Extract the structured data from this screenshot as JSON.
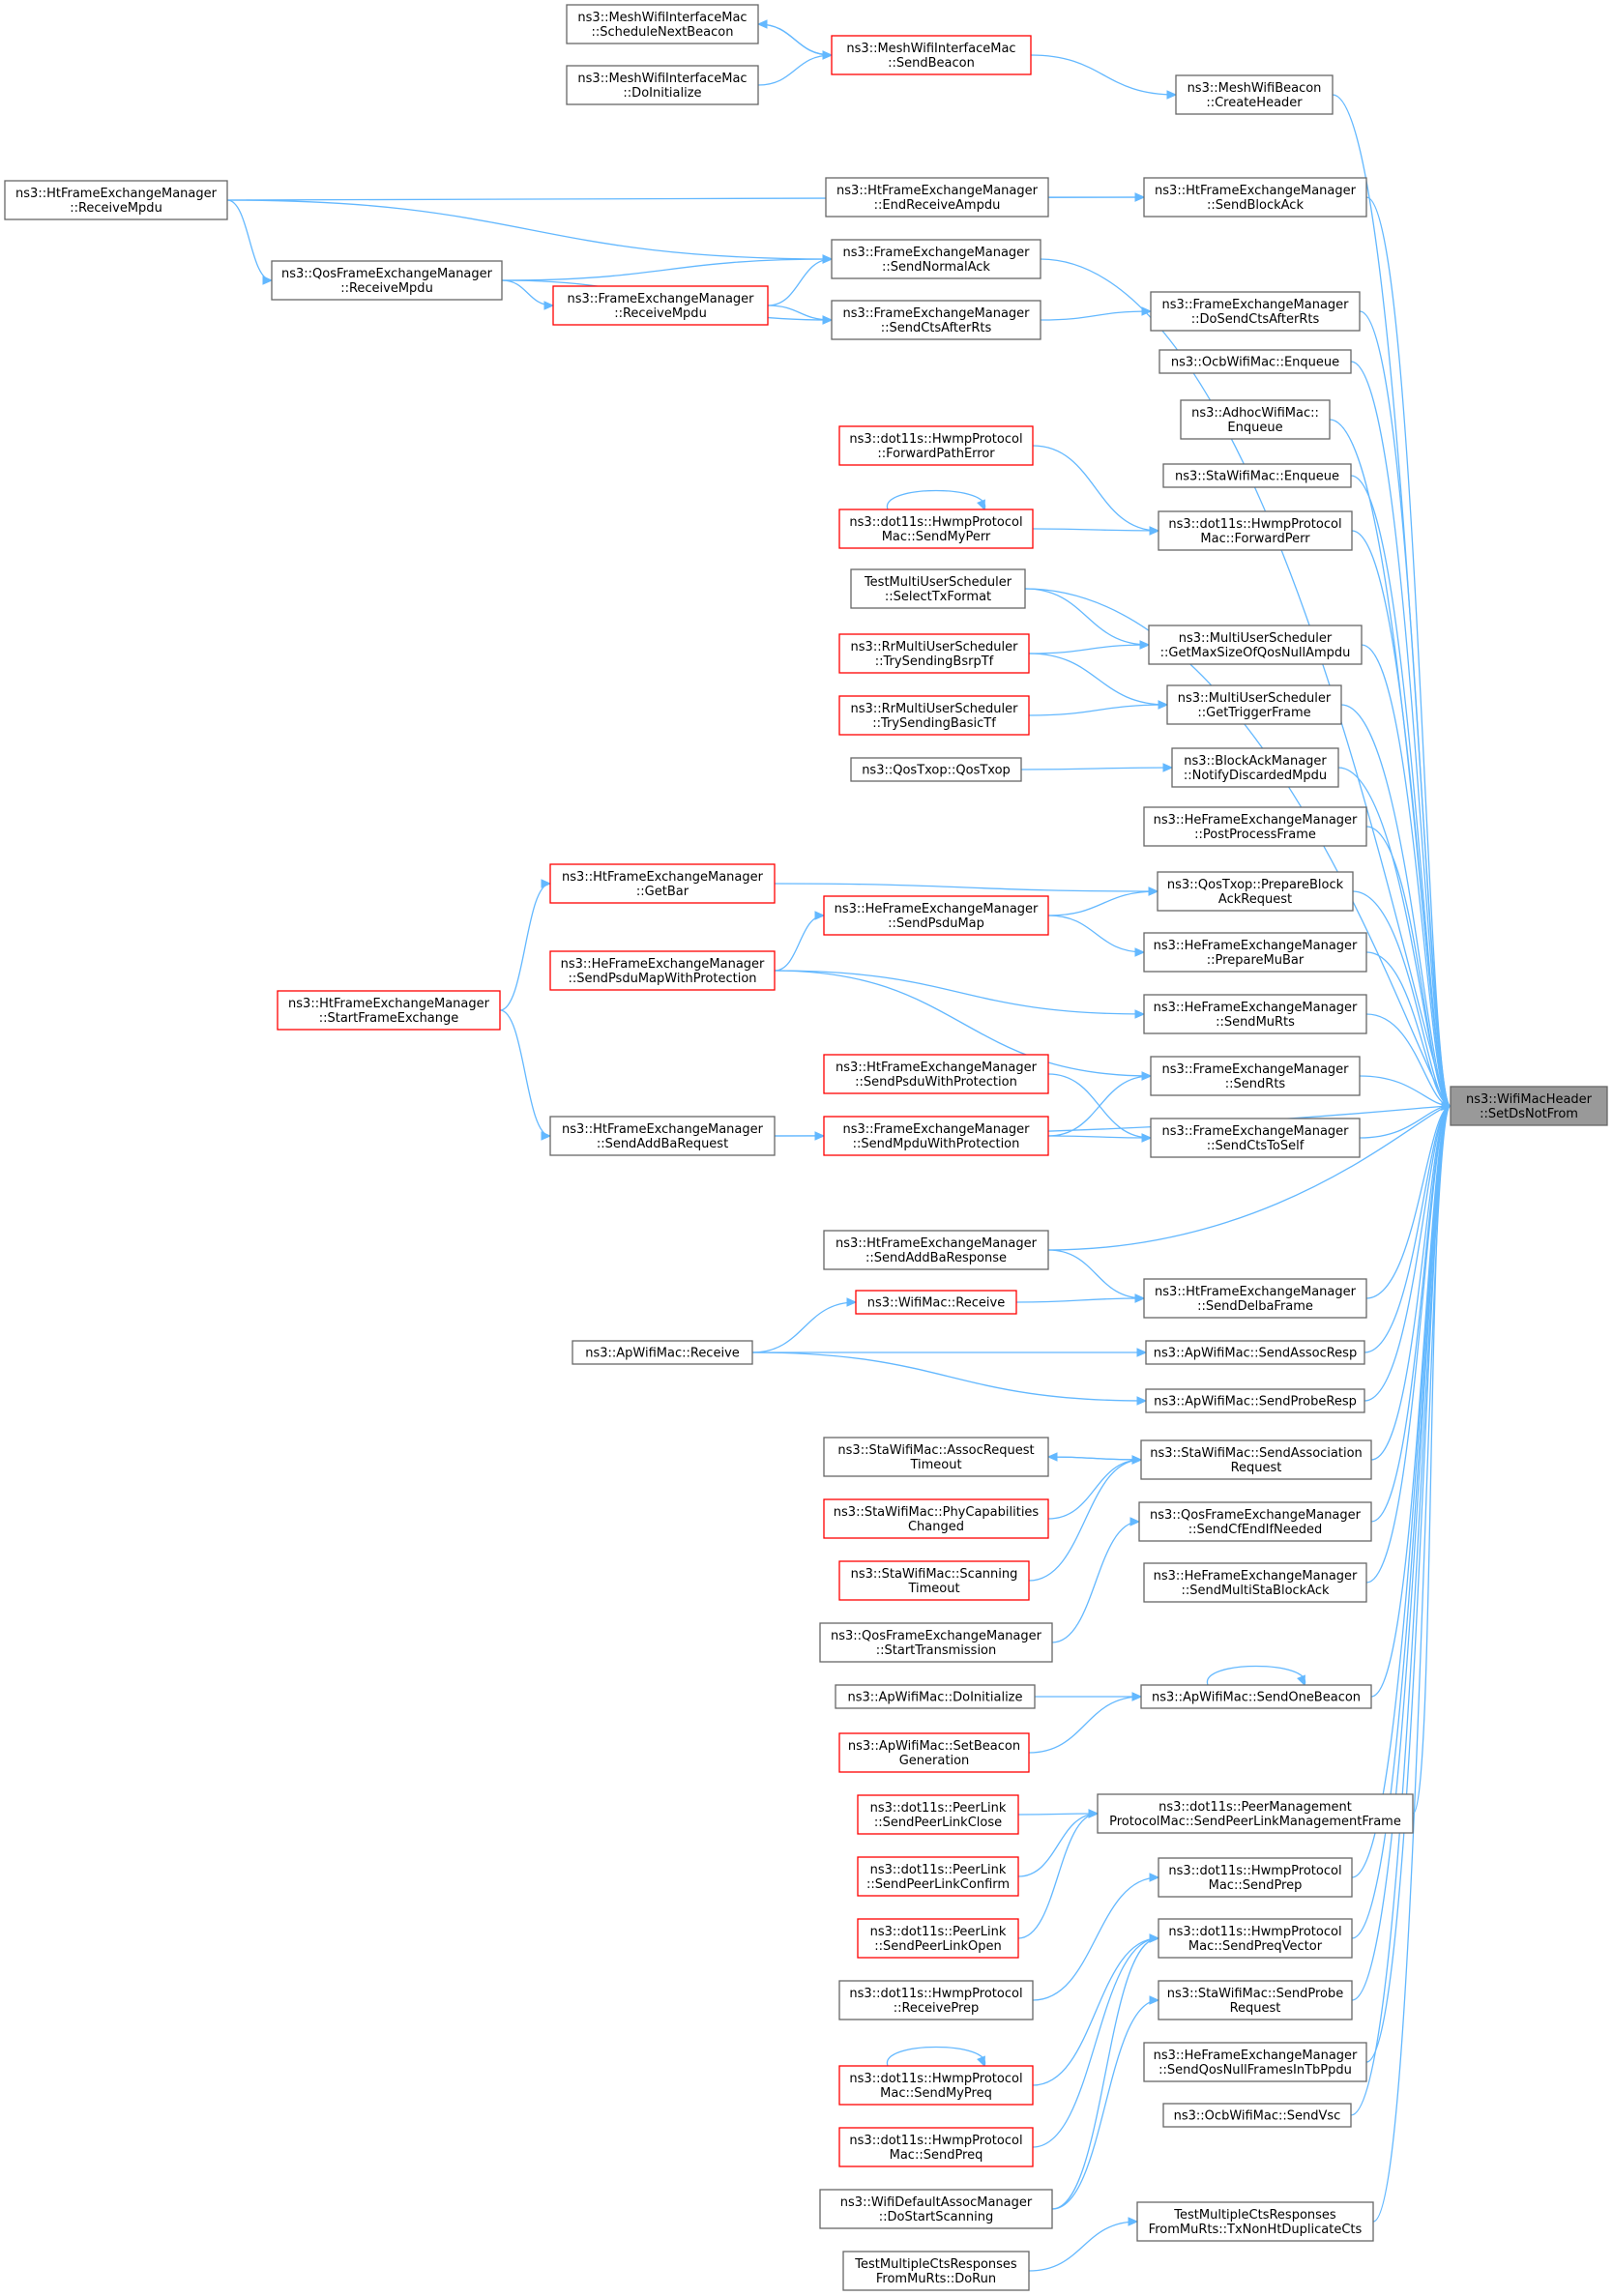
{
  "nodes": [
    {
      "id": "focus",
      "lines": [
        "ns3::WifiMacHeader",
        "::SetDsNotFrom"
      ],
      "style": "focus"
    },
    {
      "id": "mesh_schedule",
      "lines": [
        "ns3::MeshWifiInterfaceMac",
        "::ScheduleNextBeacon"
      ],
      "style": "normal"
    },
    {
      "id": "mesh_sendbeacon",
      "lines": [
        "ns3::MeshWifiInterfaceMac",
        "::SendBeacon"
      ],
      "style": "red"
    },
    {
      "id": "mesh_doinit",
      "lines": [
        "ns3::MeshWifiInterfaceMac",
        "::DoInitialize"
      ],
      "style": "normal"
    },
    {
      "id": "meshbeacon_create",
      "lines": [
        "ns3::MeshWifiBeacon",
        "::CreateHeader"
      ],
      "style": "normal"
    },
    {
      "id": "ht_receivempdu",
      "lines": [
        "ns3::HtFrameExchangeManager",
        "::ReceiveMpdu"
      ],
      "style": "normal"
    },
    {
      "id": "ht_endreceive",
      "lines": [
        "ns3::HtFrameExchangeManager",
        "::EndReceiveAmpdu"
      ],
      "style": "normal"
    },
    {
      "id": "ht_sendblockack",
      "lines": [
        "ns3::HtFrameExchangeManager",
        "::SendBlockAck"
      ],
      "style": "normal"
    },
    {
      "id": "qos_receivempdu",
      "lines": [
        "ns3::QosFrameExchangeManager",
        "::ReceiveMpdu"
      ],
      "style": "normal"
    },
    {
      "id": "fem_sendnormalack",
      "lines": [
        "ns3::FrameExchangeManager",
        "::SendNormalAck"
      ],
      "style": "normal"
    },
    {
      "id": "fem_receivempdu",
      "lines": [
        "ns3::FrameExchangeManager",
        "::ReceiveMpdu"
      ],
      "style": "red"
    },
    {
      "id": "fem_sendctsafterrts",
      "lines": [
        "ns3::FrameExchangeManager",
        "::SendCtsAfterRts"
      ],
      "style": "normal"
    },
    {
      "id": "fem_dosendcts",
      "lines": [
        "ns3::FrameExchangeManager",
        "::DoSendCtsAfterRts"
      ],
      "style": "normal"
    },
    {
      "id": "ocb_enqueue",
      "lines": [
        "ns3::OcbWifiMac::Enqueue"
      ],
      "style": "normal"
    },
    {
      "id": "adhoc_enqueue",
      "lines": [
        "ns3::AdhocWifiMac::",
        "Enqueue"
      ],
      "style": "normal"
    },
    {
      "id": "hwmp_forwardpatherror",
      "lines": [
        "ns3::dot11s::HwmpProtocol",
        "::ForwardPathError"
      ],
      "style": "red"
    },
    {
      "id": "sta_enqueue",
      "lines": [
        "ns3::StaWifiMac::Enqueue"
      ],
      "style": "normal"
    },
    {
      "id": "hwmpmac_sendmyperr",
      "lines": [
        "ns3::dot11s::HwmpProtocol",
        "Mac::SendMyPerr"
      ],
      "style": "red"
    },
    {
      "id": "hwmpmac_forwardperr",
      "lines": [
        "ns3::dot11s::HwmpProtocol",
        "Mac::ForwardPerr"
      ],
      "style": "normal"
    },
    {
      "id": "test_selecttxformat",
      "lines": [
        "TestMultiUserScheduler",
        "::SelectTxFormat"
      ],
      "style": "normal"
    },
    {
      "id": "mus_getmaxsize",
      "lines": [
        "ns3::MultiUserScheduler",
        "::GetMaxSizeOfQosNullAmpdu"
      ],
      "style": "normal"
    },
    {
      "id": "rr_trysendingbsrp",
      "lines": [
        "ns3::RrMultiUserScheduler",
        "::TrySendingBsrpTf"
      ],
      "style": "red"
    },
    {
      "id": "mus_gettriggerframe",
      "lines": [
        "ns3::MultiUserScheduler",
        "::GetTriggerFrame"
      ],
      "style": "normal"
    },
    {
      "id": "rr_trysendingbasic",
      "lines": [
        "ns3::RrMultiUserScheduler",
        "::TrySendingBasicTf"
      ],
      "style": "red"
    },
    {
      "id": "qostxop_qostxop",
      "lines": [
        "ns3::QosTxop::QosTxop"
      ],
      "style": "normal"
    },
    {
      "id": "bam_notifydiscarded",
      "lines": [
        "ns3::BlockAckManager",
        "::NotifyDiscardedMpdu"
      ],
      "style": "normal"
    },
    {
      "id": "he_postprocess",
      "lines": [
        "ns3::HeFrameExchangeManager",
        "::PostProcessFrame"
      ],
      "style": "normal"
    },
    {
      "id": "ht_getbar",
      "lines": [
        "ns3::HtFrameExchangeManager",
        "::GetBar"
      ],
      "style": "red"
    },
    {
      "id": "qostxop_prepareblock",
      "lines": [
        "ns3::QosTxop::PrepareBlock",
        "AckRequest"
      ],
      "style": "normal"
    },
    {
      "id": "he_sendpsdumap",
      "lines": [
        "ns3::HeFrameExchangeManager",
        "::SendPsduMap"
      ],
      "style": "red"
    },
    {
      "id": "he_preparemubar",
      "lines": [
        "ns3::HeFrameExchangeManager",
        "::PrepareMuBar"
      ],
      "style": "normal"
    },
    {
      "id": "he_sendpsdumapwp",
      "lines": [
        "ns3::HeFrameExchangeManager",
        "::SendPsduMapWithProtection"
      ],
      "style": "red"
    },
    {
      "id": "ht_startframeexchange",
      "lines": [
        "ns3::HtFrameExchangeManager",
        "::StartFrameExchange"
      ],
      "style": "red"
    },
    {
      "id": "he_sendmurts",
      "lines": [
        "ns3::HeFrameExchangeManager",
        "::SendMuRts"
      ],
      "style": "normal"
    },
    {
      "id": "ht_sendpsduwp",
      "lines": [
        "ns3::HtFrameExchangeManager",
        "::SendPsduWithProtection"
      ],
      "style": "red"
    },
    {
      "id": "fem_sendrts",
      "lines": [
        "ns3::FrameExchangeManager",
        "::SendRts"
      ],
      "style": "normal"
    },
    {
      "id": "ht_sendaddbarequest",
      "lines": [
        "ns3::HtFrameExchangeManager",
        "::SendAddBaRequest"
      ],
      "style": "normal"
    },
    {
      "id": "fem_sendmpduwp",
      "lines": [
        "ns3::FrameExchangeManager",
        "::SendMpduWithProtection"
      ],
      "style": "red"
    },
    {
      "id": "fem_sendctstoself",
      "lines": [
        "ns3::FrameExchangeManager",
        "::SendCtsToSelf"
      ],
      "style": "normal"
    },
    {
      "id": "ht_sendaddbaresponse",
      "lines": [
        "ns3::HtFrameExchangeManager",
        "::SendAddBaResponse"
      ],
      "style": "normal"
    },
    {
      "id": "wifimac_receive",
      "lines": [
        "ns3::WifiMac::Receive"
      ],
      "style": "red"
    },
    {
      "id": "ht_senddelbaframe",
      "lines": [
        "ns3::HtFrameExchangeManager",
        "::SendDelbaFrame"
      ],
      "style": "normal"
    },
    {
      "id": "ap_receive",
      "lines": [
        "ns3::ApWifiMac::Receive"
      ],
      "style": "normal"
    },
    {
      "id": "ap_sendassocresp",
      "lines": [
        "ns3::ApWifiMac::SendAssocResp"
      ],
      "style": "normal"
    },
    {
      "id": "ap_sendproberesp",
      "lines": [
        "ns3::ApWifiMac::SendProbeResp"
      ],
      "style": "normal"
    },
    {
      "id": "sta_assocrequesttimeout",
      "lines": [
        "ns3::StaWifiMac::AssocRequest",
        "Timeout"
      ],
      "style": "normal"
    },
    {
      "id": "sta_sendassociation",
      "lines": [
        "ns3::StaWifiMac::SendAssociation",
        "Request"
      ],
      "style": "normal"
    },
    {
      "id": "sta_phycapabilities",
      "lines": [
        "ns3::StaWifiMac::PhyCapabilities",
        "Changed"
      ],
      "style": "red"
    },
    {
      "id": "qosfem_sendcfend",
      "lines": [
        "ns3::QosFrameExchangeManager",
        "::SendCfEndIfNeeded"
      ],
      "style": "normal"
    },
    {
      "id": "sta_scanningtimeout",
      "lines": [
        "ns3::StaWifiMac::Scanning",
        "Timeout"
      ],
      "style": "red"
    },
    {
      "id": "he_sendmultista",
      "lines": [
        "ns3::HeFrameExchangeManager",
        "::SendMultiStaBlockAck"
      ],
      "style": "normal"
    },
    {
      "id": "qosfem_starttransmission",
      "lines": [
        "ns3::QosFrameExchangeManager",
        "::StartTransmission"
      ],
      "style": "normal"
    },
    {
      "id": "ap_doinitialize",
      "lines": [
        "ns3::ApWifiMac::DoInitialize"
      ],
      "style": "normal"
    },
    {
      "id": "ap_sendonebeacon",
      "lines": [
        "ns3::ApWifiMac::SendOneBeacon"
      ],
      "style": "normal"
    },
    {
      "id": "ap_setbeacongen",
      "lines": [
        "ns3::ApWifiMac::SetBeacon",
        "Generation"
      ],
      "style": "red"
    },
    {
      "id": "pl_sendpeerlinkclose",
      "lines": [
        "ns3::dot11s::PeerLink",
        "::SendPeerLinkClose"
      ],
      "style": "red"
    },
    {
      "id": "pmpmac_sendpeerlinkmgmt",
      "lines": [
        "ns3::dot11s::PeerManagement",
        "ProtocolMac::SendPeerLinkManagementFrame"
      ],
      "style": "normal"
    },
    {
      "id": "pl_sendpeerlinkconfirm",
      "lines": [
        "ns3::dot11s::PeerLink",
        "::SendPeerLinkConfirm"
      ],
      "style": "red"
    },
    {
      "id": "hwmpmac_sendprep",
      "lines": [
        "ns3::dot11s::HwmpProtocol",
        "Mac::SendPrep"
      ],
      "style": "normal"
    },
    {
      "id": "pl_sendpeerlinkopen",
      "lines": [
        "ns3::dot11s::PeerLink",
        "::SendPeerLinkOpen"
      ],
      "style": "red"
    },
    {
      "id": "hwmpmac_sendpreqvector",
      "lines": [
        "ns3::dot11s::HwmpProtocol",
        "Mac::SendPreqVector"
      ],
      "style": "normal"
    },
    {
      "id": "hwmp_receiveprep",
      "lines": [
        "ns3::dot11s::HwmpProtocol",
        "::ReceivePrep"
      ],
      "style": "normal"
    },
    {
      "id": "sta_sendproberequest",
      "lines": [
        "ns3::StaWifiMac::SendProbe",
        "Request"
      ],
      "style": "normal"
    },
    {
      "id": "hwmpmac_sendmypreq",
      "lines": [
        "ns3::dot11s::HwmpProtocol",
        "Mac::SendMyPreq"
      ],
      "style": "red"
    },
    {
      "id": "he_sendqosnull",
      "lines": [
        "ns3::HeFrameExchangeManager",
        "::SendQosNullFramesInTbPpdu"
      ],
      "style": "normal"
    },
    {
      "id": "ocb_sendvsc",
      "lines": [
        "ns3::OcbWifiMac::SendVsc"
      ],
      "style": "normal"
    },
    {
      "id": "hwmpmac_sendpreq",
      "lines": [
        "ns3::dot11s::HwmpProtocol",
        "Mac::SendPreq"
      ],
      "style": "red"
    },
    {
      "id": "wda_dostartscanning",
      "lines": [
        "ns3::WifiDefaultAssocManager",
        "::DoStartScanning"
      ],
      "style": "normal"
    },
    {
      "id": "test_txnonht",
      "lines": [
        "TestMultipleCtsResponses",
        "FromMuRts::TxNonHtDuplicateCts"
      ],
      "style": "normal"
    },
    {
      "id": "test_dorun",
      "lines": [
        "TestMultipleCtsResponses",
        "FromMuRts::DoRun"
      ],
      "style": "normal"
    }
  ],
  "edges": [
    [
      "mesh_sendbeacon",
      "mesh_schedule"
    ],
    [
      "mesh_schedule",
      "mesh_sendbeacon"
    ],
    [
      "mesh_doinit",
      "mesh_sendbeacon"
    ],
    [
      "mesh_sendbeacon",
      "meshbeacon_create"
    ],
    [
      "meshbeacon_create",
      "focus"
    ],
    [
      "ht_receivempdu",
      "ht_sendblockack"
    ],
    [
      "ht_endreceive",
      "ht_sendblockack"
    ],
    [
      "ht_sendblockack",
      "focus"
    ],
    [
      "ht_receivempdu",
      "fem_sendnormalack"
    ],
    [
      "ht_receivempdu",
      "qos_receivempdu"
    ],
    [
      "qos_receivempdu",
      "fem_sendnormalack"
    ],
    [
      "qos_receivempdu",
      "fem_receivempdu"
    ],
    [
      "qos_receivempdu",
      "fem_sendctsafterrts"
    ],
    [
      "fem_receivempdu",
      "fem_sendnormalack"
    ],
    [
      "fem_receivempdu",
      "fem_sendctsafterrts"
    ],
    [
      "fem_sendnormalack",
      "focus"
    ],
    [
      "fem_sendctsafterrts",
      "fem_dosendcts"
    ],
    [
      "fem_dosendcts",
      "focus"
    ],
    [
      "ocb_enqueue",
      "focus"
    ],
    [
      "adhoc_enqueue",
      "focus"
    ],
    [
      "sta_enqueue",
      "focus"
    ],
    [
      "hwmp_forwardpatherror",
      "hwmpmac_forwardperr"
    ],
    [
      "hwmpmac_sendmyperr",
      "hwmpmac_sendmyperr"
    ],
    [
      "hwmpmac_sendmyperr",
      "hwmpmac_forwardperr"
    ],
    [
      "hwmpmac_forwardperr",
      "focus"
    ],
    [
      "test_selecttxformat",
      "focus"
    ],
    [
      "test_selecttxformat",
      "mus_getmaxsize"
    ],
    [
      "rr_trysendingbsrp",
      "mus_getmaxsize"
    ],
    [
      "mus_getmaxsize",
      "focus"
    ],
    [
      "rr_trysendingbsrp",
      "mus_gettriggerframe"
    ],
    [
      "rr_trysendingbasic",
      "mus_gettriggerframe"
    ],
    [
      "mus_gettriggerframe",
      "focus"
    ],
    [
      "qostxop_qostxop",
      "bam_notifydiscarded"
    ],
    [
      "bam_notifydiscarded",
      "focus"
    ],
    [
      "he_postprocess",
      "focus"
    ],
    [
      "ht_getbar",
      "qostxop_prepareblock"
    ],
    [
      "he_sendpsdumap",
      "qostxop_prepareblock"
    ],
    [
      "qostxop_prepareblock",
      "focus"
    ],
    [
      "he_sendpsdumap",
      "he_preparemubar"
    ],
    [
      "he_preparemubar",
      "focus"
    ],
    [
      "he_sendpsdumapwp",
      "he_sendpsdumap"
    ],
    [
      "he_sendpsdumapwp",
      "he_sendmurts"
    ],
    [
      "he_sendpsdumapwp",
      "fem_sendrts"
    ],
    [
      "ht_startframeexchange",
      "ht_getbar"
    ],
    [
      "ht_startframeexchange",
      "ht_sendaddbarequest"
    ],
    [
      "he_sendmurts",
      "focus"
    ],
    [
      "ht_sendpsduwp",
      "fem_sendctstoself"
    ],
    [
      "fem_sendrts",
      "focus"
    ],
    [
      "ht_sendaddbarequest",
      "fem_sendmpduwp"
    ],
    [
      "ht_sendaddbarequest",
      "focus"
    ],
    [
      "fem_sendmpduwp",
      "fem_sendrts"
    ],
    [
      "fem_sendmpduwp",
      "fem_sendctstoself"
    ],
    [
      "fem_sendctstoself",
      "focus"
    ],
    [
      "ht_sendaddbaresponse",
      "focus"
    ],
    [
      "ht_sendaddbaresponse",
      "ht_senddelbaframe"
    ],
    [
      "wifimac_receive",
      "ht_senddelbaframe"
    ],
    [
      "ht_senddelbaframe",
      "focus"
    ],
    [
      "ap_receive",
      "wifimac_receive"
    ],
    [
      "ap_receive",
      "ap_sendassocresp"
    ],
    [
      "ap_receive",
      "ap_sendproberesp"
    ],
    [
      "ap_sendassocresp",
      "focus"
    ],
    [
      "ap_sendproberesp",
      "focus"
    ],
    [
      "sta_sendassociation",
      "sta_assocrequesttimeout"
    ],
    [
      "sta_assocrequesttimeout",
      "sta_sendassociation"
    ],
    [
      "sta_phycapabilities",
      "sta_sendassociation"
    ],
    [
      "sta_scanningtimeout",
      "sta_sendassociation"
    ],
    [
      "sta_sendassociation",
      "focus"
    ],
    [
      "qosfem_starttransmission",
      "qosfem_sendcfend"
    ],
    [
      "qosfem_sendcfend",
      "focus"
    ],
    [
      "he_sendmultista",
      "focus"
    ],
    [
      "ap_doinitialize",
      "ap_sendonebeacon"
    ],
    [
      "ap_setbeacongen",
      "ap_sendonebeacon"
    ],
    [
      "ap_sendonebeacon",
      "ap_sendonebeacon"
    ],
    [
      "ap_sendonebeacon",
      "focus"
    ],
    [
      "pl_sendpeerlinkclose",
      "pmpmac_sendpeerlinkmgmt"
    ],
    [
      "pl_sendpeerlinkconfirm",
      "pmpmac_sendpeerlinkmgmt"
    ],
    [
      "pl_sendpeerlinkopen",
      "pmpmac_sendpeerlinkmgmt"
    ],
    [
      "pmpmac_sendpeerlinkmgmt",
      "focus"
    ],
    [
      "hwmp_receiveprep",
      "hwmpmac_sendprep"
    ],
    [
      "hwmpmac_sendprep",
      "focus"
    ],
    [
      "hwmpmac_sendmypreq",
      "hwmpmac_sendmypreq"
    ],
    [
      "hwmpmac_sendmypreq",
      "hwmpmac_sendpreqvector"
    ],
    [
      "hwmpmac_sendpreq",
      "hwmpmac_sendpreqvector"
    ],
    [
      "wda_dostartscanning",
      "hwmpmac_sendpreqvector"
    ],
    [
      "hwmpmac_sendpreqvector",
      "focus"
    ],
    [
      "wda_dostartscanning",
      "sta_sendproberequest"
    ],
    [
      "sta_sendproberequest",
      "focus"
    ],
    [
      "he_sendqosnull",
      "focus"
    ],
    [
      "ocb_sendvsc",
      "focus"
    ],
    [
      "test_dorun",
      "test_txnonht"
    ],
    [
      "test_txnonht",
      "focus"
    ]
  ],
  "colors": {
    "edge": "#63b8ff",
    "border": "#666666",
    "border_red": "#ff0000",
    "focus_fill": "#999999"
  }
}
